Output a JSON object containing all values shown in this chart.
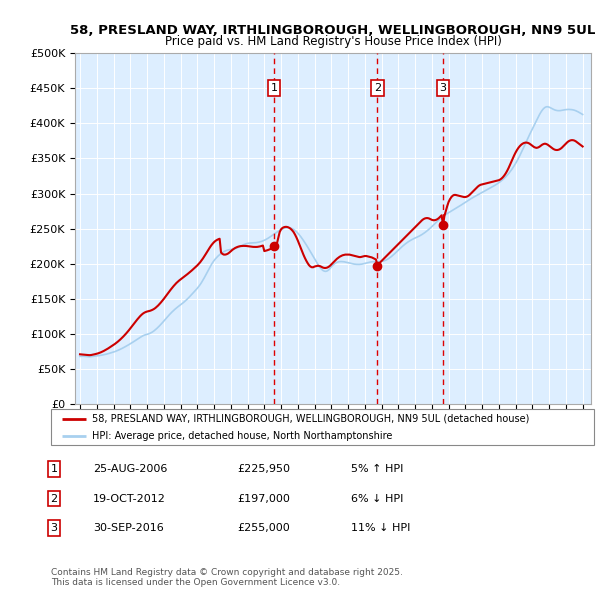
{
  "title_line1": "58, PRESLAND WAY, IRTHLINGBOROUGH, WELLINGBOROUGH, NN9 5UL",
  "title_line2": "Price paid vs. HM Land Registry's House Price Index (HPI)",
  "ylim": [
    0,
    500000
  ],
  "yticks": [
    0,
    50000,
    100000,
    150000,
    200000,
    250000,
    300000,
    350000,
    400000,
    450000,
    500000
  ],
  "ytick_labels": [
    "£0",
    "£50K",
    "£100K",
    "£150K",
    "£200K",
    "£250K",
    "£300K",
    "£350K",
    "£400K",
    "£450K",
    "£500K"
  ],
  "xtick_years": [
    1995,
    1996,
    1997,
    1998,
    1999,
    2000,
    2001,
    2002,
    2003,
    2004,
    2005,
    2006,
    2007,
    2008,
    2009,
    2010,
    2011,
    2012,
    2013,
    2014,
    2015,
    2016,
    2017,
    2018,
    2019,
    2020,
    2021,
    2022,
    2023,
    2024,
    2025
  ],
  "hpi_color": "#a8d0ef",
  "price_color": "#cc0000",
  "sale_line_color": "#dd0000",
  "plot_bg_color": "#ddeeff",
  "legend_label_red": "58, PRESLAND WAY, IRTHLINGBOROUGH, WELLINGBOROUGH, NN9 5UL (detached house)",
  "legend_label_blue": "HPI: Average price, detached house, North Northamptonshire",
  "sales": [
    {
      "num": 1,
      "date": "2006-08-25",
      "price": 225950,
      "pct": "5%",
      "dir": "↑"
    },
    {
      "num": 2,
      "date": "2012-10-19",
      "price": 197000,
      "pct": "6%",
      "dir": "↓"
    },
    {
      "num": 3,
      "date": "2016-09-30",
      "price": 255000,
      "pct": "11%",
      "dir": "↓"
    }
  ],
  "footer": "Contains HM Land Registry data © Crown copyright and database right 2025.\nThis data is licensed under the Open Government Licence v3.0.",
  "hpi_values_by_month": {
    "1995-01": 68000,
    "1995-02": 68200,
    "1995-03": 68300,
    "1995-04": 68100,
    "1995-05": 67900,
    "1995-06": 67700,
    "1995-07": 67600,
    "1995-08": 67500,
    "1995-09": 67700,
    "1995-10": 68000,
    "1995-11": 68300,
    "1995-12": 68500,
    "1996-01": 68800,
    "1996-02": 69000,
    "1996-03": 69300,
    "1996-04": 69600,
    "1996-05": 70000,
    "1996-06": 70400,
    "1996-07": 70800,
    "1996-08": 71300,
    "1996-09": 71800,
    "1996-10": 72400,
    "1996-11": 73000,
    "1996-12": 73600,
    "1997-01": 74200,
    "1997-02": 74900,
    "1997-03": 75700,
    "1997-04": 76500,
    "1997-05": 77400,
    "1997-06": 78300,
    "1997-07": 79300,
    "1997-08": 80300,
    "1997-09": 81400,
    "1997-10": 82500,
    "1997-11": 83600,
    "1997-12": 84800,
    "1998-01": 86000,
    "1998-02": 87200,
    "1998-03": 88500,
    "1998-04": 89800,
    "1998-05": 91100,
    "1998-06": 92400,
    "1998-07": 93700,
    "1998-08": 95000,
    "1998-09": 96200,
    "1998-10": 97300,
    "1998-11": 98200,
    "1998-12": 98900,
    "1999-01": 99400,
    "1999-02": 100000,
    "1999-03": 100800,
    "1999-04": 101800,
    "1999-05": 103000,
    "1999-06": 104400,
    "1999-07": 106000,
    "1999-08": 107800,
    "1999-09": 109700,
    "1999-10": 111700,
    "1999-11": 113800,
    "1999-12": 116000,
    "2000-01": 118300,
    "2000-02": 120600,
    "2000-03": 122900,
    "2000-04": 125200,
    "2000-05": 127400,
    "2000-06": 129500,
    "2000-07": 131500,
    "2000-08": 133400,
    "2000-09": 135200,
    "2000-10": 136900,
    "2000-11": 138500,
    "2000-12": 140000,
    "2001-01": 141500,
    "2001-02": 143000,
    "2001-03": 144600,
    "2001-04": 146300,
    "2001-05": 148100,
    "2001-06": 150000,
    "2001-07": 152000,
    "2001-08": 154100,
    "2001-09": 156200,
    "2001-10": 158400,
    "2001-11": 160600,
    "2001-12": 162800,
    "2002-01": 165000,
    "2002-02": 167500,
    "2002-03": 170200,
    "2002-04": 173200,
    "2002-05": 176500,
    "2002-06": 180000,
    "2002-07": 183700,
    "2002-08": 187500,
    "2002-09": 191300,
    "2002-10": 195000,
    "2002-11": 198500,
    "2002-12": 201700,
    "2003-01": 204500,
    "2003-02": 207000,
    "2003-03": 209200,
    "2003-04": 211200,
    "2003-05": 213000,
    "2003-06": 214600,
    "2003-07": 216000,
    "2003-08": 217200,
    "2003-09": 218200,
    "2003-10": 219000,
    "2003-11": 219600,
    "2003-12": 220000,
    "2004-01": 220300,
    "2004-02": 220600,
    "2004-03": 221000,
    "2004-04": 221500,
    "2004-05": 222200,
    "2004-06": 223000,
    "2004-07": 224000,
    "2004-08": 225000,
    "2004-09": 226000,
    "2004-10": 227000,
    "2004-11": 227800,
    "2004-12": 228500,
    "2005-01": 229000,
    "2005-02": 229300,
    "2005-03": 229500,
    "2005-04": 229600,
    "2005-05": 229700,
    "2005-06": 229800,
    "2005-07": 230000,
    "2005-08": 230300,
    "2005-09": 230700,
    "2005-10": 231200,
    "2005-11": 231800,
    "2005-12": 232500,
    "2006-01": 233400,
    "2006-02": 234400,
    "2006-03": 235500,
    "2006-04": 236700,
    "2006-05": 238000,
    "2006-06": 239400,
    "2006-07": 240800,
    "2006-08": 242200,
    "2006-09": 243600,
    "2006-10": 245000,
    "2006-11": 246300,
    "2006-12": 247500,
    "2007-01": 248600,
    "2007-02": 249600,
    "2007-03": 250400,
    "2007-04": 251000,
    "2007-05": 251400,
    "2007-06": 251500,
    "2007-07": 251300,
    "2007-08": 250800,
    "2007-09": 249900,
    "2007-10": 248800,
    "2007-11": 247300,
    "2007-12": 245600,
    "2008-01": 243600,
    "2008-02": 241300,
    "2008-03": 238800,
    "2008-04": 236100,
    "2008-05": 233200,
    "2008-06": 230200,
    "2008-07": 227100,
    "2008-08": 223900,
    "2008-09": 220600,
    "2008-10": 217200,
    "2008-11": 213700,
    "2008-12": 210200,
    "2009-01": 206700,
    "2009-02": 203300,
    "2009-03": 200000,
    "2009-04": 197000,
    "2009-05": 194300,
    "2009-06": 192100,
    "2009-07": 190400,
    "2009-08": 189400,
    "2009-09": 189100,
    "2009-10": 189700,
    "2009-11": 191000,
    "2009-12": 193000,
    "2010-01": 195600,
    "2010-02": 197800,
    "2010-03": 199600,
    "2010-04": 201000,
    "2010-05": 202000,
    "2010-06": 202600,
    "2010-07": 203000,
    "2010-08": 203100,
    "2010-09": 203000,
    "2010-10": 202800,
    "2010-11": 202400,
    "2010-12": 202000,
    "2011-01": 201500,
    "2011-02": 201000,
    "2011-03": 200500,
    "2011-04": 200000,
    "2011-05": 199600,
    "2011-06": 199300,
    "2011-07": 199100,
    "2011-08": 199000,
    "2011-09": 199000,
    "2011-10": 199200,
    "2011-11": 199500,
    "2011-12": 200000,
    "2012-01": 200500,
    "2012-02": 201000,
    "2012-03": 201500,
    "2012-04": 202000,
    "2012-05": 202400,
    "2012-06": 202700,
    "2012-07": 202900,
    "2012-08": 203000,
    "2012-09": 203000,
    "2012-10": 203000,
    "2012-11": 203000,
    "2012-12": 203100,
    "2013-01": 203300,
    "2013-02": 203700,
    "2013-03": 204300,
    "2013-04": 205100,
    "2013-05": 206100,
    "2013-06": 207300,
    "2013-07": 208700,
    "2013-08": 210200,
    "2013-09": 211900,
    "2013-10": 213700,
    "2013-11": 215600,
    "2013-12": 217500,
    "2014-01": 219400,
    "2014-02": 221300,
    "2014-03": 223100,
    "2014-04": 224900,
    "2014-05": 226600,
    "2014-06": 228200,
    "2014-07": 229700,
    "2014-08": 231100,
    "2014-09": 232400,
    "2014-10": 233600,
    "2014-11": 234700,
    "2014-12": 235700,
    "2015-01": 236600,
    "2015-02": 237500,
    "2015-03": 238400,
    "2015-04": 239400,
    "2015-05": 240500,
    "2015-06": 241700,
    "2015-07": 243000,
    "2015-08": 244400,
    "2015-09": 245900,
    "2015-10": 247500,
    "2015-11": 249200,
    "2015-12": 251000,
    "2016-01": 252900,
    "2016-02": 254800,
    "2016-03": 256700,
    "2016-04": 258600,
    "2016-05": 260500,
    "2016-06": 262300,
    "2016-07": 264000,
    "2016-08": 265700,
    "2016-09": 267300,
    "2016-10": 268800,
    "2016-11": 270200,
    "2016-12": 271500,
    "2017-01": 272700,
    "2017-02": 273900,
    "2017-03": 275100,
    "2017-04": 276300,
    "2017-05": 277500,
    "2017-06": 278700,
    "2017-07": 279900,
    "2017-08": 281100,
    "2017-09": 282300,
    "2017-10": 283600,
    "2017-11": 284900,
    "2017-12": 286200,
    "2018-01": 287500,
    "2018-02": 288800,
    "2018-03": 290100,
    "2018-04": 291400,
    "2018-05": 292600,
    "2018-06": 293800,
    "2018-07": 294900,
    "2018-08": 296000,
    "2018-09": 297100,
    "2018-10": 298200,
    "2018-11": 299300,
    "2018-12": 300400,
    "2019-01": 301500,
    "2019-02": 302600,
    "2019-03": 303700,
    "2019-04": 304800,
    "2019-05": 305900,
    "2019-06": 307000,
    "2019-07": 308100,
    "2019-08": 309200,
    "2019-09": 310300,
    "2019-10": 311500,
    "2019-11": 312700,
    "2019-12": 314000,
    "2020-01": 315400,
    "2020-02": 316900,
    "2020-03": 318500,
    "2020-04": 320200,
    "2020-05": 322000,
    "2020-06": 324000,
    "2020-07": 326100,
    "2020-08": 328400,
    "2020-09": 330900,
    "2020-10": 333600,
    "2020-11": 336500,
    "2020-12": 339600,
    "2021-01": 342900,
    "2021-02": 346400,
    "2021-03": 350100,
    "2021-04": 354000,
    "2021-05": 358100,
    "2021-06": 362300,
    "2021-07": 366600,
    "2021-08": 371000,
    "2021-09": 375400,
    "2021-10": 379700,
    "2021-11": 383900,
    "2021-12": 388000,
    "2022-01": 392000,
    "2022-02": 396000,
    "2022-03": 400000,
    "2022-04": 404000,
    "2022-05": 408000,
    "2022-06": 412000,
    "2022-07": 415500,
    "2022-08": 418500,
    "2022-09": 420900,
    "2022-10": 422600,
    "2022-11": 423500,
    "2022-12": 423600,
    "2023-01": 423000,
    "2023-02": 422100,
    "2023-03": 421000,
    "2023-04": 420000,
    "2023-05": 419100,
    "2023-06": 418500,
    "2023-07": 418100,
    "2023-08": 418000,
    "2023-09": 418100,
    "2023-10": 418400,
    "2023-11": 418800,
    "2023-12": 419200,
    "2024-01": 419500,
    "2024-02": 419700,
    "2024-03": 419800,
    "2024-04": 419700,
    "2024-05": 419500,
    "2024-06": 419200,
    "2024-07": 418700,
    "2024-08": 418000,
    "2024-09": 417100,
    "2024-10": 416100,
    "2024-11": 415000,
    "2024-12": 413800,
    "2025-01": 412600
  },
  "price_values_by_month": {
    "1995-01": 71000,
    "1995-02": 70800,
    "1995-03": 70600,
    "1995-04": 70400,
    "1995-05": 70200,
    "1995-06": 70000,
    "1995-07": 69900,
    "1995-08": 69800,
    "1995-09": 70000,
    "1995-10": 70400,
    "1995-11": 70800,
    "1995-12": 71300,
    "1996-01": 71800,
    "1996-02": 72400,
    "1996-03": 73100,
    "1996-04": 73900,
    "1996-05": 74800,
    "1996-06": 75800,
    "1996-07": 76900,
    "1996-08": 78000,
    "1996-09": 79200,
    "1996-10": 80500,
    "1996-11": 81800,
    "1996-12": 83100,
    "1997-01": 84400,
    "1997-02": 85800,
    "1997-03": 87300,
    "1997-04": 88900,
    "1997-05": 90600,
    "1997-06": 92400,
    "1997-07": 94300,
    "1997-08": 96300,
    "1997-09": 98400,
    "1997-10": 100600,
    "1997-11": 102900,
    "1997-12": 105300,
    "1998-01": 107800,
    "1998-02": 110300,
    "1998-03": 112900,
    "1998-04": 115500,
    "1998-05": 118100,
    "1998-06": 120600,
    "1998-07": 123000,
    "1998-08": 125200,
    "1998-09": 127200,
    "1998-10": 128900,
    "1998-11": 130200,
    "1998-12": 131200,
    "1999-01": 131900,
    "1999-02": 132400,
    "1999-03": 132900,
    "1999-04": 133600,
    "1999-05": 134500,
    "1999-06": 135600,
    "1999-07": 137000,
    "1999-08": 138700,
    "1999-09": 140600,
    "1999-10": 142700,
    "1999-11": 145000,
    "1999-12": 147400,
    "2000-01": 149900,
    "2000-02": 152500,
    "2000-03": 155200,
    "2000-04": 157900,
    "2000-05": 160600,
    "2000-06": 163200,
    "2000-07": 165700,
    "2000-08": 168100,
    "2000-09": 170400,
    "2000-10": 172500,
    "2000-11": 174400,
    "2000-12": 176100,
    "2001-01": 177700,
    "2001-02": 179200,
    "2001-03": 180700,
    "2001-04": 182200,
    "2001-05": 183700,
    "2001-06": 185300,
    "2001-07": 186900,
    "2001-08": 188600,
    "2001-09": 190300,
    "2001-10": 192100,
    "2001-11": 193900,
    "2001-12": 195700,
    "2002-01": 197600,
    "2002-02": 199700,
    "2002-03": 202000,
    "2002-04": 204600,
    "2002-05": 207400,
    "2002-06": 210400,
    "2002-07": 213600,
    "2002-08": 216800,
    "2002-09": 220100,
    "2002-10": 223200,
    "2002-11": 226100,
    "2002-12": 228600,
    "2003-01": 230800,
    "2003-02": 232500,
    "2003-03": 233800,
    "2003-04": 234800,
    "2003-05": 235600,
    "2003-06": 216000,
    "2003-07": 214000,
    "2003-08": 213000,
    "2003-09": 213000,
    "2003-10": 213500,
    "2003-11": 214500,
    "2003-12": 216000,
    "2004-01": 217800,
    "2004-02": 219500,
    "2004-03": 221000,
    "2004-04": 222300,
    "2004-05": 223300,
    "2004-06": 224100,
    "2004-07": 224700,
    "2004-08": 225100,
    "2004-09": 225300,
    "2004-10": 225400,
    "2004-11": 225400,
    "2004-12": 225300,
    "2005-01": 225100,
    "2005-02": 224800,
    "2005-03": 224500,
    "2005-04": 224200,
    "2005-05": 224000,
    "2005-06": 223900,
    "2005-07": 223900,
    "2005-08": 224000,
    "2005-09": 224300,
    "2005-10": 224700,
    "2005-11": 225300,
    "2005-12": 225900,
    "2006-01": 218000,
    "2006-02": 218500,
    "2006-03": 219100,
    "2006-04": 219800,
    "2006-05": 220600,
    "2006-06": 221500,
    "2006-07": 222400,
    "2006-08": 225950,
    "2006-09": 226800,
    "2006-10": 228500,
    "2006-11": 237000,
    "2006-12": 245000,
    "2007-01": 249000,
    "2007-02": 251000,
    "2007-03": 252000,
    "2007-04": 252500,
    "2007-05": 252500,
    "2007-06": 252000,
    "2007-07": 251000,
    "2007-08": 249500,
    "2007-09": 247500,
    "2007-10": 245000,
    "2007-11": 241500,
    "2007-12": 237500,
    "2008-01": 233000,
    "2008-02": 228000,
    "2008-03": 223000,
    "2008-04": 218000,
    "2008-05": 213000,
    "2008-06": 208500,
    "2008-07": 204500,
    "2008-08": 201000,
    "2008-09": 198000,
    "2008-10": 196000,
    "2008-11": 195000,
    "2008-12": 195000,
    "2009-01": 196000,
    "2009-02": 196500,
    "2009-03": 197000,
    "2009-04": 197000,
    "2009-05": 196500,
    "2009-06": 195500,
    "2009-07": 194500,
    "2009-08": 194000,
    "2009-09": 194000,
    "2009-10": 194500,
    "2009-11": 195500,
    "2009-12": 197000,
    "2010-01": 199000,
    "2010-02": 201000,
    "2010-03": 203000,
    "2010-04": 205000,
    "2010-05": 207000,
    "2010-06": 208500,
    "2010-07": 210000,
    "2010-08": 211000,
    "2010-09": 212000,
    "2010-10": 212500,
    "2010-11": 213000,
    "2010-12": 213000,
    "2011-01": 213000,
    "2011-02": 213000,
    "2011-03": 212500,
    "2011-04": 212000,
    "2011-05": 211500,
    "2011-06": 211000,
    "2011-07": 210500,
    "2011-08": 210000,
    "2011-09": 209500,
    "2011-10": 209500,
    "2011-11": 210000,
    "2011-12": 210500,
    "2012-01": 211000,
    "2012-02": 211000,
    "2012-03": 210500,
    "2012-04": 210000,
    "2012-05": 209500,
    "2012-06": 209000,
    "2012-07": 208000,
    "2012-08": 207000,
    "2012-09": 206000,
    "2012-10": 197000,
    "2012-11": 200000,
    "2012-12": 202000,
    "2013-01": 204000,
    "2013-02": 206000,
    "2013-03": 208000,
    "2013-04": 210000,
    "2013-05": 212000,
    "2013-06": 214000,
    "2013-07": 216000,
    "2013-08": 218000,
    "2013-09": 220000,
    "2013-10": 222000,
    "2013-11": 224000,
    "2013-12": 226000,
    "2014-01": 228000,
    "2014-02": 230000,
    "2014-03": 232000,
    "2014-04": 234000,
    "2014-05": 236000,
    "2014-06": 238000,
    "2014-07": 240000,
    "2014-08": 242000,
    "2014-09": 244000,
    "2014-10": 246000,
    "2014-11": 248000,
    "2014-12": 250000,
    "2015-01": 252000,
    "2015-02": 254000,
    "2015-03": 256000,
    "2015-04": 258000,
    "2015-05": 260000,
    "2015-06": 262000,
    "2015-07": 263500,
    "2015-08": 264500,
    "2015-09": 265000,
    "2015-10": 265000,
    "2015-11": 264500,
    "2015-12": 263500,
    "2016-01": 262500,
    "2016-02": 262000,
    "2016-03": 262000,
    "2016-04": 262500,
    "2016-05": 263500,
    "2016-06": 265000,
    "2016-07": 267000,
    "2016-08": 269000,
    "2016-09": 255000,
    "2016-10": 268000,
    "2016-11": 275000,
    "2016-12": 282000,
    "2017-01": 288000,
    "2017-02": 292000,
    "2017-03": 295000,
    "2017-04": 297000,
    "2017-05": 298000,
    "2017-06": 298000,
    "2017-07": 297500,
    "2017-08": 297000,
    "2017-09": 296500,
    "2017-10": 296000,
    "2017-11": 295500,
    "2017-12": 295000,
    "2018-01": 295000,
    "2018-02": 295500,
    "2018-03": 296500,
    "2018-04": 298000,
    "2018-05": 300000,
    "2018-06": 302000,
    "2018-07": 304000,
    "2018-08": 306000,
    "2018-09": 308000,
    "2018-10": 310000,
    "2018-11": 311500,
    "2018-12": 312500,
    "2019-01": 313000,
    "2019-02": 313500,
    "2019-03": 314000,
    "2019-04": 314500,
    "2019-05": 315000,
    "2019-06": 315500,
    "2019-07": 316000,
    "2019-08": 316500,
    "2019-09": 317000,
    "2019-10": 317500,
    "2019-11": 318000,
    "2019-12": 318500,
    "2020-01": 319000,
    "2020-02": 320000,
    "2020-03": 321500,
    "2020-04": 323500,
    "2020-05": 326000,
    "2020-06": 329000,
    "2020-07": 332500,
    "2020-08": 336500,
    "2020-09": 341000,
    "2020-10": 345500,
    "2020-11": 350000,
    "2020-12": 354500,
    "2021-01": 358500,
    "2021-02": 362000,
    "2021-03": 365000,
    "2021-04": 367500,
    "2021-05": 369500,
    "2021-06": 371000,
    "2021-07": 372000,
    "2021-08": 372500,
    "2021-09": 372500,
    "2021-10": 372000,
    "2021-11": 371000,
    "2021-12": 369500,
    "2022-01": 368000,
    "2022-02": 366500,
    "2022-03": 365500,
    "2022-04": 365000,
    "2022-05": 365500,
    "2022-06": 366500,
    "2022-07": 368000,
    "2022-08": 369500,
    "2022-09": 370500,
    "2022-10": 371000,
    "2022-11": 370500,
    "2022-12": 369500,
    "2023-01": 368000,
    "2023-02": 366500,
    "2023-03": 365000,
    "2023-04": 363500,
    "2023-05": 362500,
    "2023-06": 362000,
    "2023-07": 362000,
    "2023-08": 362500,
    "2023-09": 363500,
    "2023-10": 365000,
    "2023-11": 367000,
    "2023-12": 369000,
    "2024-01": 371000,
    "2024-02": 373000,
    "2024-03": 374500,
    "2024-04": 375500,
    "2024-05": 376000,
    "2024-06": 376000,
    "2024-07": 375500,
    "2024-08": 374500,
    "2024-09": 373000,
    "2024-10": 371500,
    "2024-11": 370000,
    "2024-12": 368500,
    "2025-01": 367000
  }
}
